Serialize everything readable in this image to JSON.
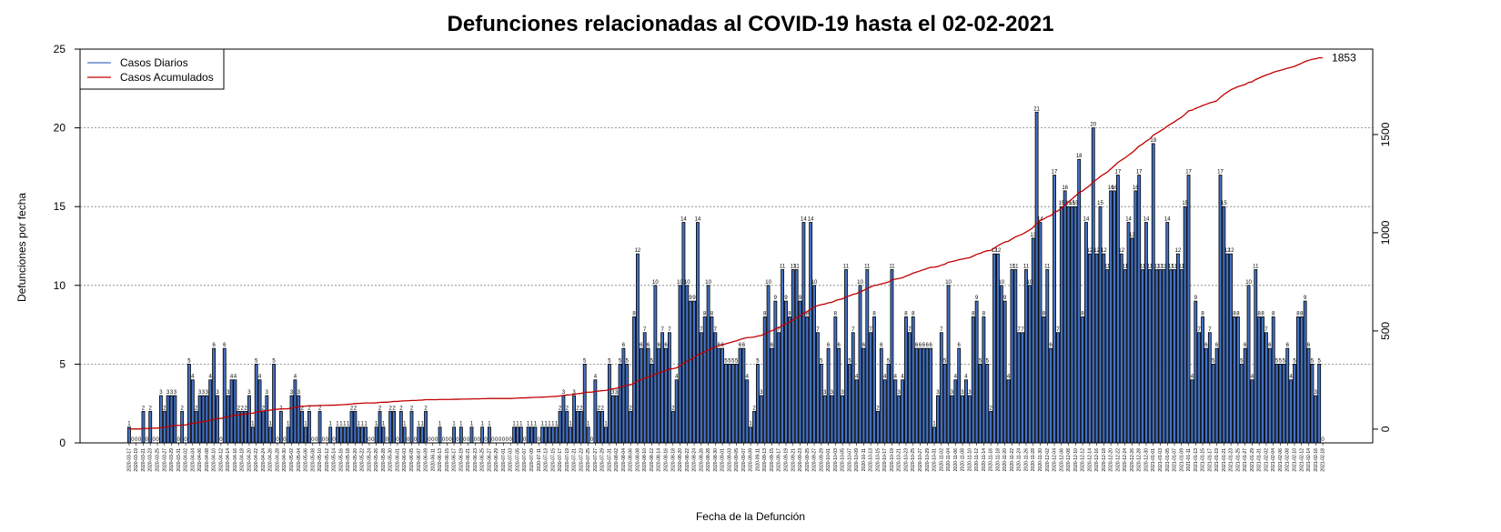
{
  "chart_data": {
    "type": "bar",
    "title": "Defunciones relacionadas al COVID-19 hasta el 02-02-2021",
    "xlabel": "Fecha de la Defunción",
    "ylabel": "Defunciones por fecha",
    "ylim": [
      0,
      25
    ],
    "y_ticks": [
      0,
      5,
      10,
      15,
      20,
      25
    ],
    "y2lim": [
      -70,
      1935
    ],
    "y2_ticks": [
      0,
      500,
      1000,
      1500
    ],
    "grid": "horizontal dotted",
    "legend_position": "top-left",
    "start_date": "2020-03-17",
    "end_date": "2021-02-02",
    "date_tick_every": 2,
    "cumulative_end_label": "1853",
    "series": [
      {
        "name": "Casos Diarios",
        "color": "#4472c4",
        "values": [
          1,
          0,
          0,
          0,
          2,
          0,
          2,
          0,
          0,
          3,
          2,
          3,
          3,
          3,
          0,
          2,
          0,
          5,
          4,
          2,
          3,
          3,
          3,
          4,
          6,
          3,
          0,
          6,
          3,
          4,
          4,
          2,
          2,
          2,
          3,
          1,
          5,
          4,
          2,
          3,
          1,
          5,
          0,
          2,
          0,
          1,
          3,
          4,
          3,
          2,
          1,
          2,
          0,
          0,
          2,
          0,
          0,
          1,
          0,
          1,
          1,
          1,
          1,
          2,
          2,
          1,
          1,
          1,
          0,
          0,
          1,
          2,
          1,
          0,
          2,
          2,
          0,
          2,
          1,
          0,
          2,
          0,
          1,
          1,
          2,
          0,
          0,
          0,
          1,
          0,
          0,
          0,
          1,
          0,
          1,
          0,
          0,
          1,
          0,
          0,
          1,
          0,
          1,
          0,
          0,
          0,
          0,
          0,
          0,
          1,
          1,
          1,
          0,
          1,
          1,
          1,
          0,
          1,
          1,
          1,
          1,
          1,
          2,
          3,
          2,
          1,
          3,
          2,
          2,
          5,
          1,
          0,
          4,
          2,
          2,
          1,
          5,
          3,
          3,
          5,
          6,
          5,
          2,
          8,
          12,
          6,
          7,
          6,
          5,
          10,
          6,
          7,
          6,
          7,
          2,
          4,
          10,
          14,
          10,
          9,
          9,
          14,
          7,
          8,
          10,
          8,
          7,
          6,
          6,
          5,
          5,
          5,
          5,
          6,
          6,
          4,
          1,
          2,
          5,
          3,
          8,
          10,
          6,
          9,
          7,
          11,
          9,
          8,
          11,
          11,
          9,
          14,
          8,
          14,
          10,
          7,
          5,
          3,
          6,
          3,
          8,
          6,
          3,
          11,
          5,
          7,
          4,
          10,
          6,
          11,
          7,
          8,
          2,
          6,
          4,
          5,
          11,
          4,
          3,
          4,
          8,
          7,
          8,
          6,
          6,
          6,
          6,
          6,
          1,
          3,
          7,
          5,
          10,
          3,
          4,
          6,
          3,
          4,
          3,
          8,
          9,
          5,
          8,
          5,
          2,
          12,
          12,
          10,
          9,
          4,
          11,
          11,
          7,
          7,
          11,
          10,
          13,
          21,
          14,
          8,
          11,
          6,
          17,
          7,
          15,
          16,
          15,
          15,
          15,
          18,
          8,
          14,
          12,
          20,
          12,
          15,
          12,
          11,
          16,
          16,
          17,
          12,
          11,
          14,
          13,
          16,
          17,
          11,
          14,
          11,
          19,
          11,
          11,
          11,
          14,
          11,
          11,
          12,
          11,
          15,
          17,
          4,
          9,
          7,
          8,
          6,
          7,
          5,
          6,
          17,
          15,
          12,
          12,
          8,
          8,
          5,
          6,
          10,
          4,
          11,
          8,
          8,
          7,
          6,
          8,
          5,
          5,
          5,
          6,
          4,
          5,
          8,
          8,
          9,
          6,
          5,
          3,
          5,
          0
        ]
      },
      {
        "name": "Casos Acumulados",
        "color": "#c00000"
      }
    ]
  }
}
